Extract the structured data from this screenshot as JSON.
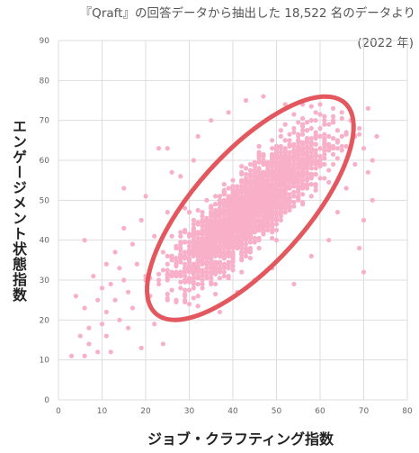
{
  "header": {
    "source_note": "『Qraft』の回答データから抽出した 18,522 名のデータより",
    "source_year": "(2022 年)"
  },
  "chart_data": {
    "type": "scatter",
    "xlabel": "ジョブ・クラフティング指数",
    "ylabel": "エンゲージメント状態指数",
    "xlim": [
      0,
      80
    ],
    "ylim": [
      0,
      90
    ],
    "x_ticks": [
      "0",
      "10",
      "20",
      "30",
      "40",
      "50",
      "60",
      "70",
      "80"
    ],
    "y_ticks": [
      "0",
      "10",
      "20",
      "30",
      "40",
      "50",
      "60",
      "70",
      "80",
      "90"
    ],
    "grid": true,
    "point_color": "#f8afc8",
    "highlight_color": "#e2585e",
    "highlight_ellipse": {
      "center": [
        44,
        48
      ],
      "angle_deg": 48,
      "note": "main cluster ring"
    },
    "points": [
      [
        3,
        11
      ],
      [
        4,
        26
      ],
      [
        5,
        16
      ],
      [
        6,
        11
      ],
      [
        6,
        40
      ],
      [
        6,
        23
      ],
      [
        7,
        18
      ],
      [
        7,
        14
      ],
      [
        8,
        31
      ],
      [
        9,
        25
      ],
      [
        9,
        12
      ],
      [
        10,
        28
      ],
      [
        10,
        19
      ],
      [
        11,
        34
      ],
      [
        11,
        22
      ],
      [
        11,
        16
      ],
      [
        12,
        29
      ],
      [
        12,
        12
      ],
      [
        13,
        37
      ],
      [
        13,
        25
      ],
      [
        14,
        20
      ],
      [
        14,
        33
      ],
      [
        15,
        30
      ],
      [
        15,
        53
      ],
      [
        15,
        43
      ],
      [
        16,
        27
      ],
      [
        16,
        18
      ],
      [
        17,
        39
      ],
      [
        17,
        23
      ],
      [
        18,
        34
      ],
      [
        19,
        13
      ],
      [
        19,
        45
      ],
      [
        20,
        30
      ],
      [
        20,
        51
      ],
      [
        21,
        26
      ],
      [
        22,
        41
      ],
      [
        22,
        19
      ],
      [
        23,
        63
      ],
      [
        24,
        37
      ],
      [
        24,
        14
      ],
      [
        25,
        63
      ],
      [
        25,
        47
      ],
      [
        26,
        57
      ],
      [
        27,
        31
      ],
      [
        28,
        56
      ],
      [
        29,
        48
      ],
      [
        30,
        24
      ],
      [
        31,
        60
      ],
      [
        32,
        66
      ],
      [
        33,
        29
      ],
      [
        35,
        70
      ],
      [
        37,
        22
      ],
      [
        39,
        72
      ],
      [
        41,
        27
      ],
      [
        43,
        75
      ],
      [
        45,
        30
      ],
      [
        47,
        76
      ],
      [
        49,
        33
      ],
      [
        52,
        74
      ],
      [
        54,
        29
      ],
      [
        56,
        74
      ],
      [
        58,
        36
      ],
      [
        60,
        74
      ],
      [
        62,
        40
      ],
      [
        63,
        73
      ],
      [
        64,
        47
      ],
      [
        65,
        72
      ],
      [
        66,
        53
      ],
      [
        67,
        70
      ],
      [
        68,
        59
      ],
      [
        69,
        68
      ],
      [
        70,
        63
      ],
      [
        70,
        45
      ],
      [
        71,
        57
      ],
      [
        71,
        73
      ],
      [
        72,
        60
      ],
      [
        72,
        50
      ],
      [
        73,
        66
      ],
      [
        69,
        38
      ],
      [
        70,
        32
      ]
    ]
  }
}
